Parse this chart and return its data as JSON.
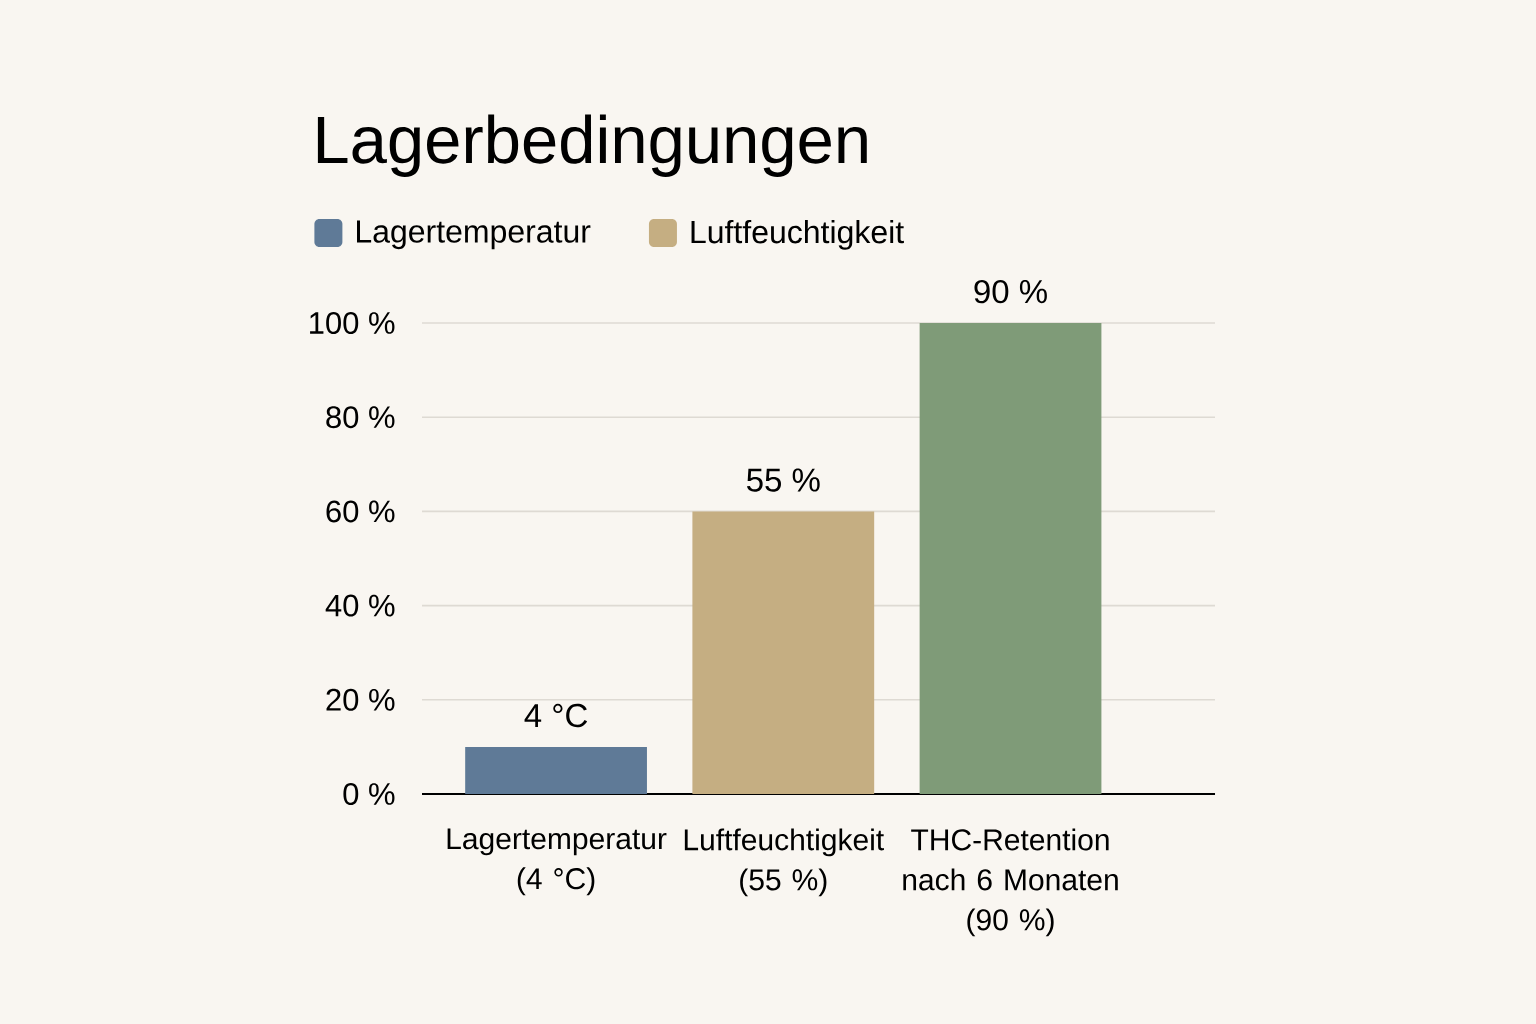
{
  "chart_data": {
    "type": "bar",
    "title": "Lagerbedingungen",
    "categories": [
      "Lagertemperatur (4 °C)",
      "Luftfeuchtigkeit (55 %)",
      "THC-Retention nach 6 Monaten (90 %)"
    ],
    "series": [
      {
        "name": "Lagertemperatur",
        "color": "#5f7a97",
        "values": [
          10,
          null,
          null
        ]
      },
      {
        "name": "Luftfeuchtigkeit",
        "color": "#c5ae82",
        "values": [
          null,
          60,
          null
        ]
      },
      {
        "color": "#7f9b78",
        "values": [
          null,
          null,
          100
        ]
      }
    ],
    "stacked": true,
    "ylim": [
      0,
      100
    ],
    "yticks": [
      {
        "value": 0,
        "label": "0 %"
      },
      {
        "value": 20,
        "label": "20 %"
      },
      {
        "value": 40,
        "label": "40 %"
      },
      {
        "value": 60,
        "label": "60 %"
      },
      {
        "value": 80,
        "label": "80 %"
      },
      {
        "value": 100,
        "label": "100 %"
      }
    ],
    "annotations": [
      {
        "text": "4 °C",
        "x": "Lagertemperatur (4 °C)",
        "y": 10
      },
      {
        "text": "55 %",
        "x": "Luftfeuchtigkeit (55 %)",
        "y": 60
      },
      {
        "text": "90 %",
        "x": "THC-Retention nach 6 Monaten (90 %)",
        "y": 100
      }
    ],
    "grid": "y",
    "legend": "top left"
  }
}
